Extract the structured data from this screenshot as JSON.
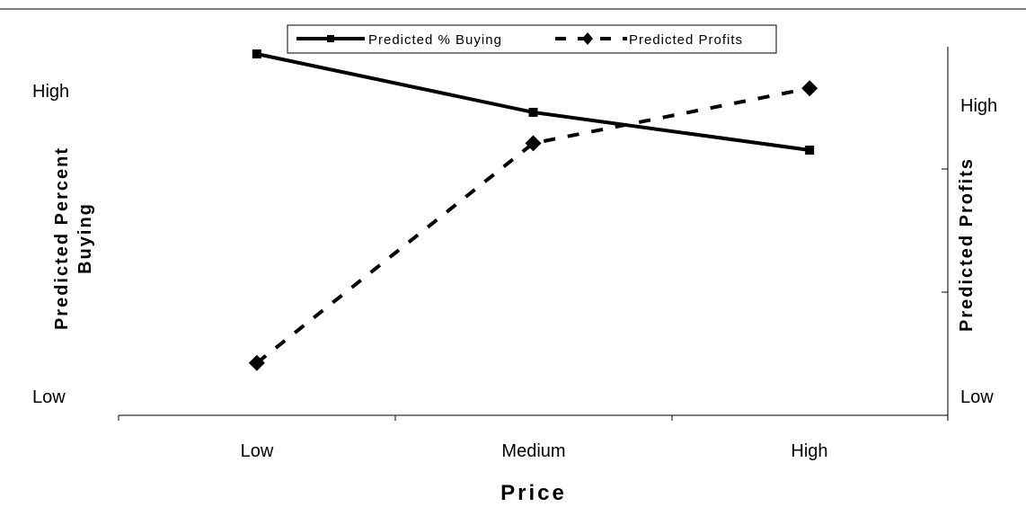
{
  "chart_data": {
    "type": "line",
    "title": "",
    "xlabel": "Price",
    "ylabel_left": "Predicted Percent Buying",
    "ylabel_left_lines": [
      "Predicted Percent",
      "Buying"
    ],
    "ylabel_right": "Predicted Profits",
    "categories": [
      "Low",
      "Medium",
      "High"
    ],
    "y_left_ticks": {
      "low": "Low",
      "high": "High"
    },
    "y_right_ticks": {
      "low": "Low",
      "high": "High"
    },
    "ylim": [
      0,
      1
    ],
    "grid": false,
    "legend_position": "top",
    "series": [
      {
        "name": "Predicted % Buying",
        "axis": "left",
        "style": "solid",
        "marker": "square",
        "color": "#000000",
        "values": [
          1.0,
          0.83,
          0.72
        ]
      },
      {
        "name": "Predicted Profits",
        "axis": "right",
        "style": "dashed",
        "marker": "diamond",
        "color": "#000000",
        "values": [
          0.1,
          0.74,
          0.9
        ]
      }
    ]
  }
}
